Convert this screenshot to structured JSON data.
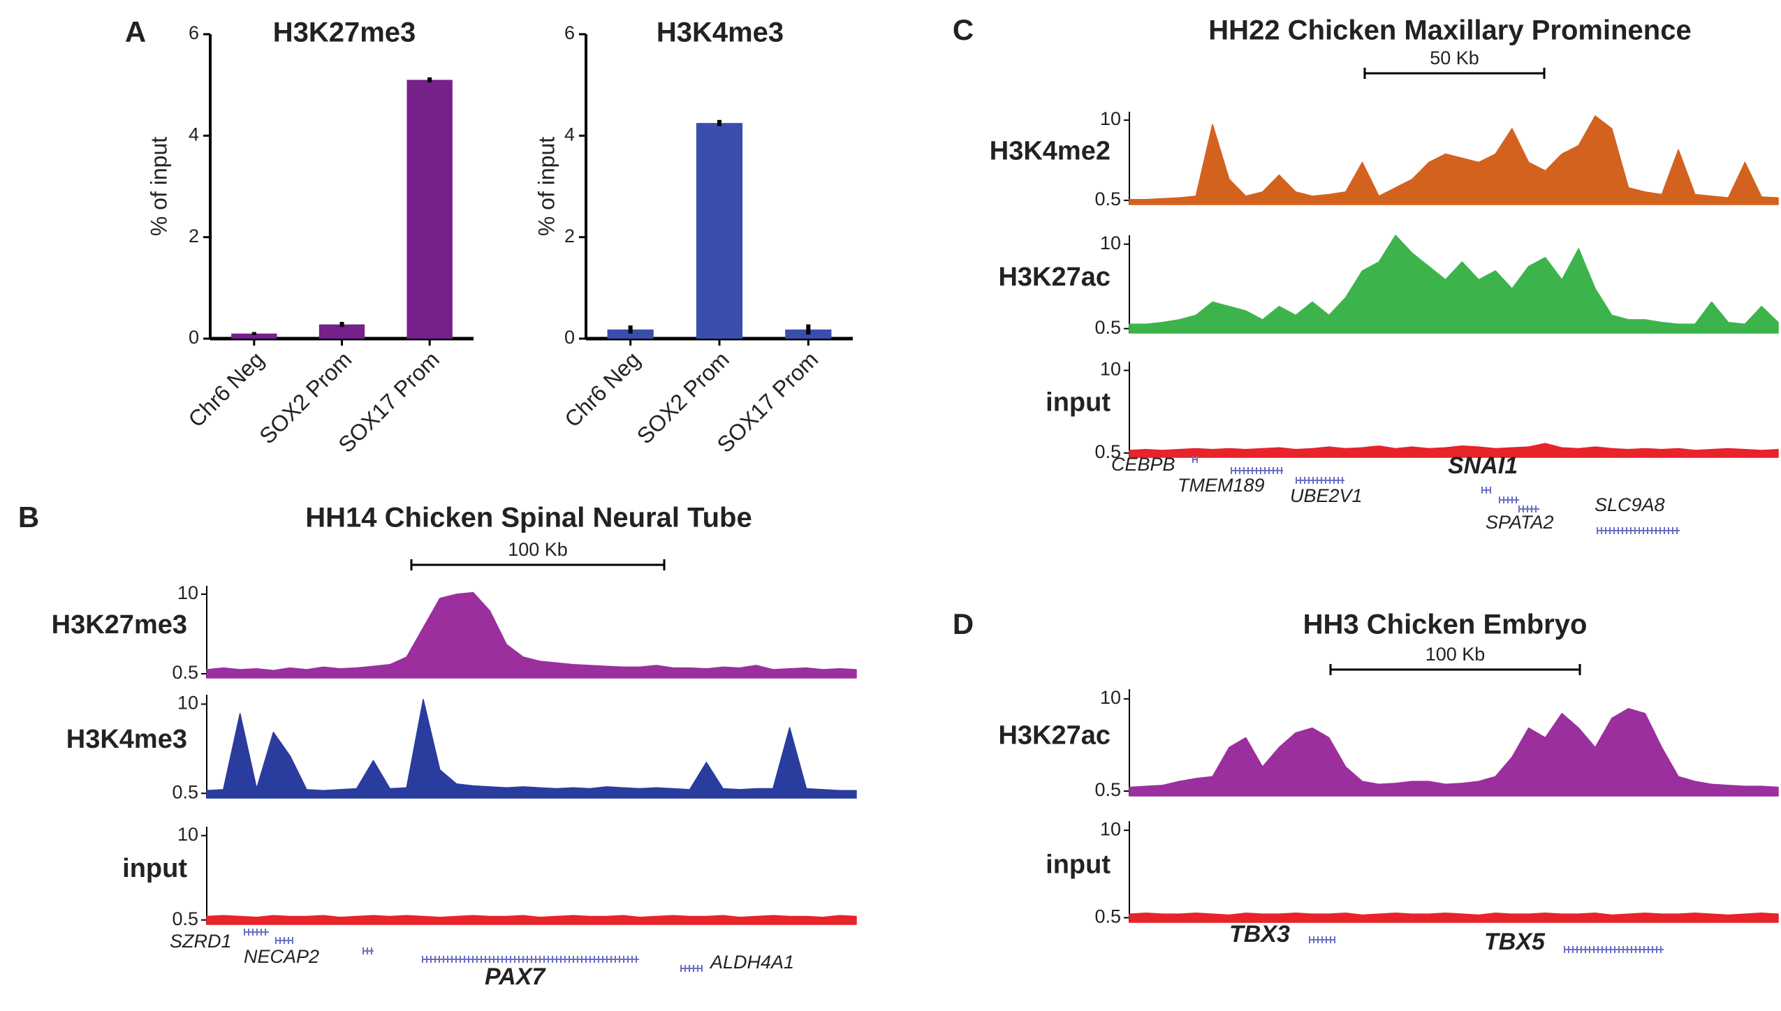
{
  "chart_data": [
    {
      "type": "bar",
      "panel": "A",
      "title": "H3K27me3",
      "ylabel": "% of input",
      "categories": [
        "Chr6 Neg",
        "SOX2 Prom",
        "SOX17 Prom"
      ],
      "values": [
        0.1,
        0.28,
        5.1
      ],
      "errors": [
        0.03,
        0.05,
        0.05
      ],
      "color": "#76208a",
      "ylim": [
        0,
        6
      ],
      "yticks": [
        0,
        2,
        4,
        6
      ]
    },
    {
      "type": "bar",
      "title": "H3K4me3",
      "ylabel": "% of input",
      "categories": [
        "Chr6 Neg",
        "SOX2 Prom",
        "SOX17 Prom"
      ],
      "values": [
        0.18,
        4.25,
        0.18
      ],
      "errors": [
        0.08,
        0.06,
        0.1
      ],
      "color": "#3a4fad",
      "ylim": [
        0,
        6
      ],
      "yticks": [
        0,
        2,
        4,
        6
      ]
    },
    {
      "type": "tracks",
      "panel": "B",
      "title": "HH14 Chicken Spinal Neural Tube",
      "scale_bar": "100 Kb",
      "ylim": [
        0,
        11
      ],
      "yticks": [
        0.5,
        10
      ],
      "series": [
        {
          "name": "H3K27me3",
          "color": "#9b2f9e",
          "values": [
            1,
            1.2,
            1,
            1.1,
            0.9,
            1.2,
            1,
            1.3,
            1.1,
            1.2,
            1.4,
            1.6,
            2.5,
            6,
            9.5,
            10,
            10.2,
            8,
            4,
            2.5,
            2,
            1.8,
            1.6,
            1.5,
            1.4,
            1.3,
            1.3,
            1.5,
            1.2,
            1.2,
            1.1,
            1.3,
            1.2,
            1.5,
            1,
            1.1,
            1.2,
            1,
            1.1,
            1
          ]
        },
        {
          "name": "H3K4me3",
          "color": "#2a3c9e",
          "values": [
            0.8,
            0.9,
            9,
            1,
            7,
            4.5,
            0.9,
            0.8,
            0.9,
            1,
            4,
            1,
            1.1,
            10.5,
            3,
            1.5,
            1.3,
            1.2,
            1.1,
            1.2,
            1.1,
            1,
            1.1,
            1,
            1.2,
            1.1,
            1,
            1.1,
            1,
            0.9,
            3.8,
            1,
            0.9,
            1,
            1,
            7.5,
            1,
            0.9,
            0.8,
            0.8
          ]
        },
        {
          "name": "input",
          "color": "#e8232a",
          "values": [
            0.9,
            1,
            0.9,
            0.8,
            1,
            0.9,
            0.9,
            1,
            0.8,
            0.9,
            1,
            0.9,
            1,
            0.9,
            0.8,
            0.9,
            1,
            0.9,
            0.9,
            1,
            0.8,
            0.9,
            1,
            0.9,
            0.9,
            1,
            0.8,
            0.9,
            1,
            0.9,
            0.9,
            1,
            0.8,
            0.9,
            1,
            0.9,
            0.9,
            0.8,
            1,
            0.9
          ]
        }
      ],
      "genes": [
        "SZRD1",
        "NECAP2",
        "PAX7",
        "ALDH4A1"
      ],
      "bold_genes": [
        "PAX7"
      ]
    },
    {
      "type": "tracks",
      "panel": "C",
      "title": "HH22 Chicken Maxillary Prominence",
      "scale_bar": "50 Kb",
      "ylim": [
        0,
        11
      ],
      "yticks": [
        0.5,
        10
      ],
      "series": [
        {
          "name": "H3K4me2",
          "color": "#d4621f",
          "values": [
            0.6,
            0.6,
            0.7,
            0.8,
            1,
            9.5,
            3,
            1,
            1.5,
            3.5,
            1.5,
            1,
            1.2,
            1.5,
            5,
            1,
            2,
            3,
            5,
            6,
            5.5,
            5,
            6,
            9,
            5,
            4,
            6,
            7,
            10.5,
            9,
            2,
            1.5,
            1.2,
            6.5,
            1.2,
            1,
            0.8,
            5,
            0.9,
            0.8
          ]
        },
        {
          "name": "H3K27ac",
          "color": "#3cb44b",
          "values": [
            1,
            1,
            1.2,
            1.5,
            2,
            3.5,
            3,
            2.5,
            1.5,
            3,
            2,
            3.5,
            2,
            4,
            7,
            8,
            11,
            9,
            7.5,
            6,
            8,
            6,
            7,
            5,
            7.5,
            8.5,
            6,
            9.5,
            5,
            2,
            1.5,
            1.5,
            1.2,
            1,
            1,
            3.5,
            1.2,
            1,
            3,
            1.2
          ]
        },
        {
          "name": "input",
          "color": "#e8232a",
          "values": [
            0.8,
            0.9,
            0.8,
            0.9,
            1,
            0.9,
            1,
            0.9,
            1,
            1.1,
            0.9,
            1,
            1.2,
            1,
            1.1,
            1.3,
            1,
            1.2,
            1,
            1.1,
            1.3,
            1.2,
            1,
            1.1,
            1.2,
            1.6,
            1.1,
            1,
            1.2,
            1,
            0.9,
            1,
            0.9,
            1,
            0.8,
            0.9,
            1,
            0.9,
            0.8,
            0.9
          ]
        }
      ],
      "genes": [
        "CEBPB",
        "TMEM189",
        "UBE2V1",
        "SNAI1",
        "SPATA2",
        "SLC9A8"
      ],
      "bold_genes": [
        "SNAI1"
      ]
    },
    {
      "type": "tracks",
      "panel": "D",
      "title": "HH3 Chicken Embryo",
      "scale_bar": "100 Kb",
      "ylim": [
        0,
        11
      ],
      "yticks": [
        0.5,
        10
      ],
      "series": [
        {
          "name": "H3K27ac",
          "color": "#9b2f9e",
          "values": [
            0.9,
            1,
            1.1,
            1.5,
            1.8,
            2,
            5,
            6,
            3,
            5,
            6.5,
            7,
            6,
            3,
            1.5,
            1.2,
            1.3,
            1.5,
            1.5,
            1.2,
            1.3,
            1.5,
            2,
            4,
            7,
            6,
            8.5,
            7,
            5,
            8,
            9,
            8.5,
            5,
            2,
            1.5,
            1.2,
            1.1,
            1,
            1,
            0.9
          ]
        },
        {
          "name": "input",
          "color": "#e8232a",
          "values": [
            0.9,
            1,
            0.9,
            0.9,
            1,
            0.9,
            0.8,
            1,
            0.9,
            0.9,
            1,
            0.9,
            0.9,
            1,
            0.8,
            0.9,
            1,
            0.9,
            0.9,
            1,
            0.9,
            0.8,
            1,
            0.9,
            0.9,
            1,
            0.9,
            0.9,
            1,
            0.8,
            0.9,
            1,
            0.9,
            0.9,
            1,
            0.9,
            0.8,
            0.9,
            1,
            0.9
          ]
        }
      ],
      "genes": [
        "TBX3",
        "TBX5"
      ],
      "bold_genes": [
        "TBX3",
        "TBX5"
      ]
    }
  ]
}
